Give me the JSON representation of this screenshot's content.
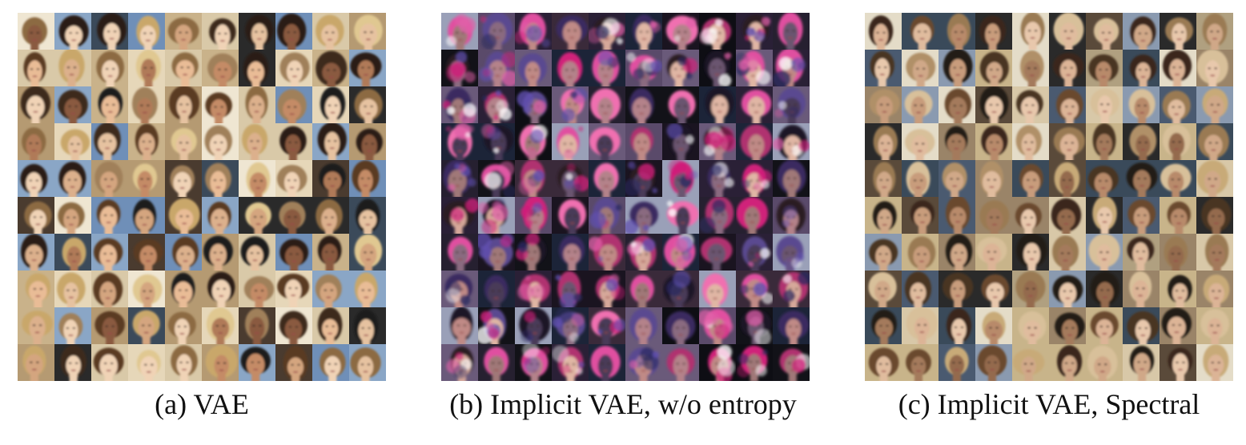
{
  "panels": [
    {
      "caption": "(a) VAE",
      "style": "vae",
      "palette": {
        "backgrounds": [
          "#d9c9a8",
          "#6f8fb8",
          "#2a2a2a",
          "#e6d7b9",
          "#8aa6c6",
          "#4a3b2f",
          "#c9b28a",
          "#efe6d2",
          "#3b4a5a",
          "#b59a72"
        ],
        "skin": [
          "#e6c2a0",
          "#d4a57f",
          "#c48b66",
          "#f0d3b6",
          "#b07a58",
          "#e9bc96",
          "#8a5a40",
          "#dcb08c"
        ],
        "hair": [
          "#2b1d14",
          "#5a3a22",
          "#8c6a42",
          "#c9a76a",
          "#1a1a1a",
          "#a0805a",
          "#3d2a1c",
          "#e0c891"
        ]
      }
    },
    {
      "caption": "(b) Implicit VAE, w/o entropy",
      "style": "implicit-noentropy",
      "palette": {
        "backgrounds": [
          "#121218",
          "#2a2036",
          "#1c2438",
          "#3a2a3a",
          "#0e0e14",
          "#5a4a6a",
          "#262030",
          "#9aa0b8",
          "#1a1420",
          "#6a5a7a"
        ],
        "skin": [
          "#c08a86",
          "#8a6a80",
          "#d6a89a",
          "#6a5470",
          "#b4828a",
          "#e0b6a4",
          "#4a3a58",
          "#a07878"
        ],
        "hair": [
          "#d0207a",
          "#e050a0",
          "#3a2a60",
          "#1a1428",
          "#b03070",
          "#5a4a90",
          "#2a1a20",
          "#f070b0"
        ]
      }
    },
    {
      "caption": "(c) Implicit VAE, Spectral",
      "style": "spectral",
      "palette": {
        "backgrounds": [
          "#3a4a5a",
          "#c8b48a",
          "#2a2a2a",
          "#8a9ab0",
          "#d8c8a8",
          "#5a4a3a",
          "#b0a080",
          "#e4dcc8",
          "#4a5a70",
          "#9a8468"
        ],
        "skin": [
          "#dcb496",
          "#c89c7c",
          "#b88a6a",
          "#e8c8ac",
          "#a47a5c",
          "#d0a888",
          "#946a4e",
          "#e0bc9e"
        ],
        "hair": [
          "#3a281a",
          "#6a4a2e",
          "#9a7a52",
          "#c8aa78",
          "#241a12",
          "#b09068",
          "#4a3624",
          "#d8c09a"
        ]
      }
    }
  ]
}
